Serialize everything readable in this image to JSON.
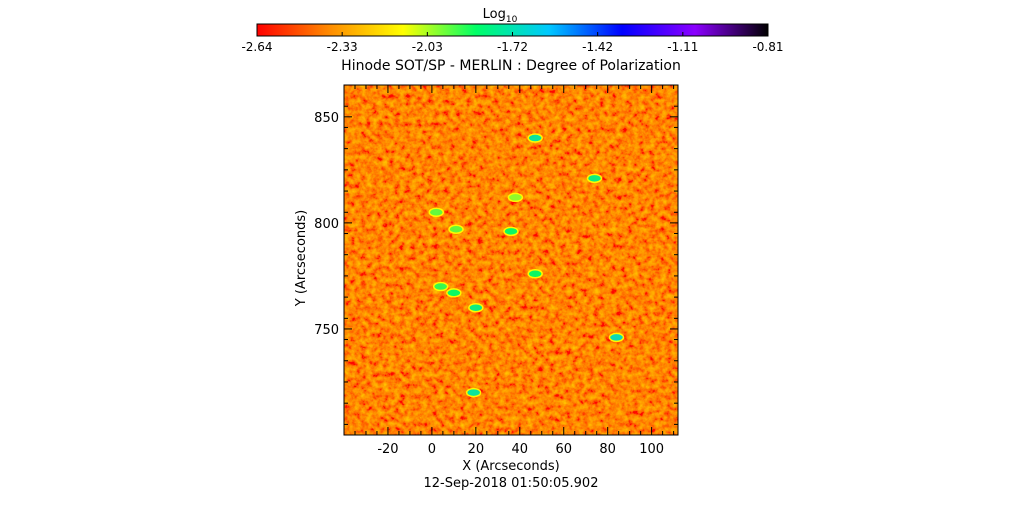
{
  "chart_data": {
    "type": "heatmap",
    "title": "Hinode SOT/SP - MERLIN : Degree of Polarization",
    "timestamp": "12-Sep-2018 01:50:05.902",
    "xlabel": "X (Arcseconds)",
    "ylabel": "Y (Arcseconds)",
    "xlim": [
      -40,
      112
    ],
    "ylim": [
      700,
      865
    ],
    "xticks": [
      -20,
      0,
      20,
      40,
      60,
      80,
      100
    ],
    "yticks": [
      750,
      800,
      850
    ],
    "colorbar": {
      "label_base": "Log",
      "label_sub": "10",
      "ticks": [
        "-2.64",
        "-2.33",
        "-2.03",
        "-1.72",
        "-1.42",
        "-1.11",
        "-0.81"
      ],
      "range": [
        -2.64,
        -0.81
      ],
      "colormap": [
        "#ff0000",
        "#ff8c00",
        "#ffff00",
        "#00ff66",
        "#00c8ff",
        "#0000ff",
        "#8b00ff",
        "#000000"
      ]
    },
    "features": [
      {
        "x": 47,
        "y": 840,
        "value": -1.75
      },
      {
        "x": 74,
        "y": 821,
        "value": -1.8
      },
      {
        "x": 36,
        "y": 796,
        "value": -1.85
      },
      {
        "x": 11,
        "y": 797,
        "value": -1.95
      },
      {
        "x": 4,
        "y": 770,
        "value": -1.9
      },
      {
        "x": 10,
        "y": 767,
        "value": -1.85
      },
      {
        "x": 20,
        "y": 760,
        "value": -1.8
      },
      {
        "x": 47,
        "y": 776,
        "value": -1.85
      },
      {
        "x": 84,
        "y": 746,
        "value": -1.7
      },
      {
        "x": 19,
        "y": 720,
        "value": -1.75
      },
      {
        "x": 2,
        "y": 805,
        "value": -1.95
      },
      {
        "x": 38,
        "y": 812,
        "value": -2.0
      }
    ]
  }
}
